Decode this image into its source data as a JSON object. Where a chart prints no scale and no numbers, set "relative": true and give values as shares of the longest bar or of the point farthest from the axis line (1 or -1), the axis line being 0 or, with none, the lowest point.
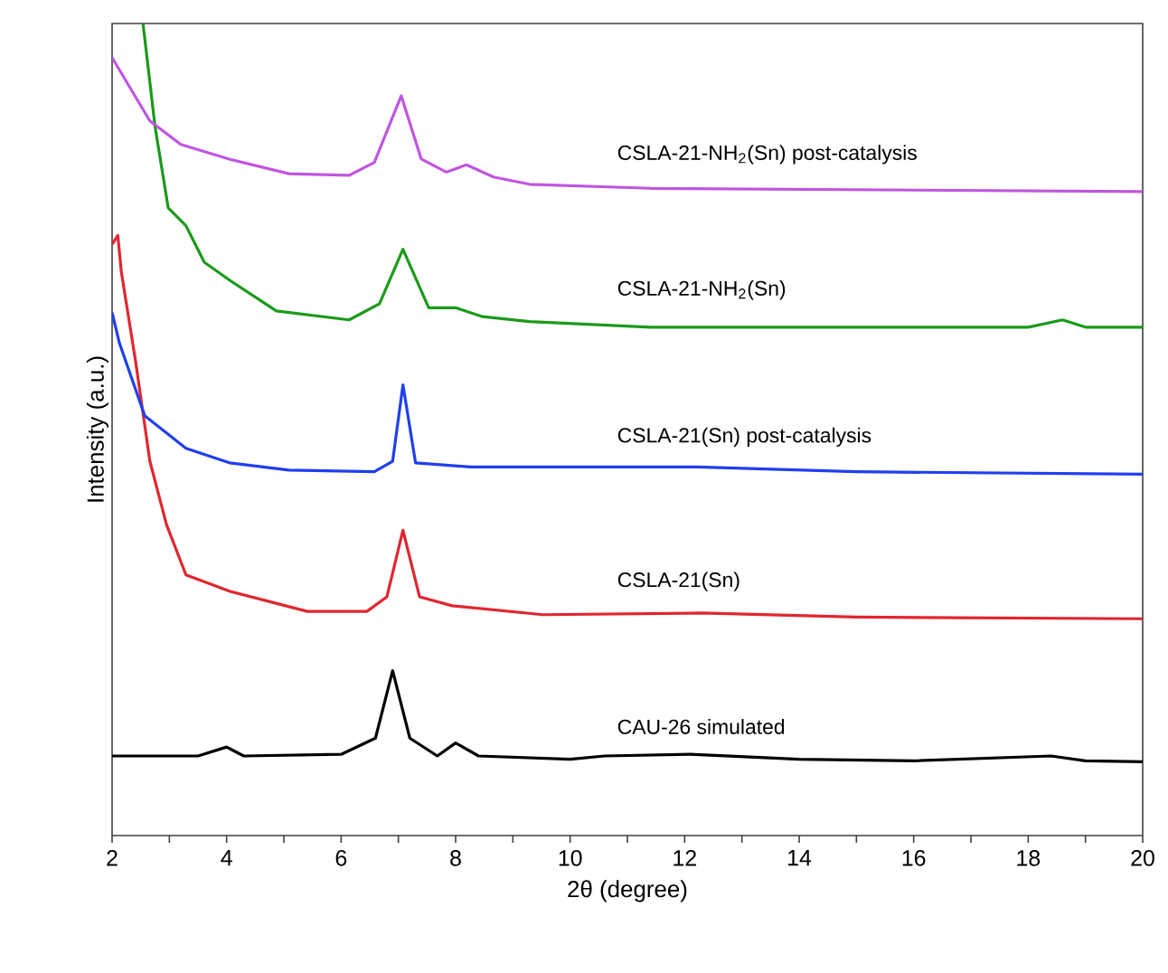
{
  "chart_data": {
    "type": "line",
    "relative": true,
    "xlabel": "2θ (degree)",
    "ylabel": "Intensity (a.u.)",
    "xlim": [
      2,
      20
    ],
    "xticks": [
      2,
      {
        "value": 3,
        "label": null
      },
      4,
      {
        "value": 5,
        "label": null
      },
      6,
      {
        "value": 7,
        "label": null
      },
      8,
      {
        "value": 9,
        "label": null
      },
      10,
      {
        "value": 11,
        "label": null
      },
      12,
      {
        "value": 13,
        "label": null
      },
      14,
      {
        "value": 15,
        "label": null
      },
      16,
      {
        "value": 17,
        "label": null
      },
      18,
      {
        "value": 19,
        "label": null
      },
      20
    ],
    "legend": false,
    "marker": "none",
    "line_style": "solid",
    "series": [
      {
        "name": "CAU-26 simulated",
        "color": "#000000",
        "x": [
          2,
          3.5,
          4.0,
          4.3,
          6.0,
          6.6,
          6.9,
          7.2,
          7.68,
          8.0,
          8.4,
          10,
          10.6,
          12.1,
          14,
          16,
          18.4,
          19,
          20
        ],
        "values": [
          0.098,
          0.098,
          0.109,
          0.098,
          0.1,
          0.12,
          0.203,
          0.12,
          0.098,
          0.114,
          0.098,
          0.094,
          0.098,
          0.1,
          0.094,
          0.092,
          0.098,
          0.092,
          0.091
        ]
      },
      {
        "name": "CSLA-21(Sn)",
        "color": "#e0262f",
        "x": [
          2.0,
          2.1,
          2.16,
          2.41,
          2.66,
          2.95,
          3.29,
          4.05,
          5.41,
          6.45,
          6.8,
          7.08,
          7.37,
          7.94,
          9.52,
          12.3,
          15,
          20
        ],
        "values": [
          0.728,
          0.739,
          0.695,
          0.584,
          0.461,
          0.383,
          0.321,
          0.301,
          0.276,
          0.276,
          0.294,
          0.376,
          0.294,
          0.283,
          0.272,
          0.274,
          0.269,
          0.267
        ]
      },
      {
        "name": "CSLA-21(Sn) post-catalysis",
        "color": "#1f3ff0",
        "x": [
          2.0,
          2.13,
          2.57,
          3.29,
          4.05,
          5.09,
          6.58,
          6.9,
          7.08,
          7.3,
          8.25,
          12.2,
          15,
          20
        ],
        "values": [
          0.644,
          0.606,
          0.517,
          0.477,
          0.459,
          0.45,
          0.448,
          0.461,
          0.555,
          0.459,
          0.454,
          0.454,
          0.448,
          0.445
        ]
      },
      {
        "name": "CSLA-21-NH$_{2}$(Sn)",
        "color": "#1a9a1a",
        "x": [
          2.54,
          2.75,
          2.98,
          3.29,
          3.61,
          4.05,
          4.87,
          6.14,
          6.67,
          7.08,
          7.53,
          8.0,
          8.47,
          9.29,
          11.41,
          18.0,
          18.6,
          19.0,
          20
        ],
        "values": [
          1.0,
          0.873,
          0.773,
          0.751,
          0.706,
          0.684,
          0.646,
          0.635,
          0.655,
          0.722,
          0.65,
          0.65,
          0.639,
          0.633,
          0.626,
          0.626,
          0.635,
          0.626,
          0.626
        ]
      },
      {
        "name": "CSLA-21-NH$_{2}$(Sn) post-catalysis",
        "color": "#c056e0",
        "x": [
          2.0,
          2.66,
          3.2,
          4.05,
          5.09,
          6.14,
          6.58,
          7.05,
          7.4,
          7.84,
          8.19,
          8.66,
          9.29,
          11.41,
          20
        ],
        "values": [
          0.958,
          0.88,
          0.851,
          0.833,
          0.815,
          0.813,
          0.829,
          0.911,
          0.833,
          0.817,
          0.826,
          0.811,
          0.802,
          0.797,
          0.793
        ]
      }
    ]
  }
}
